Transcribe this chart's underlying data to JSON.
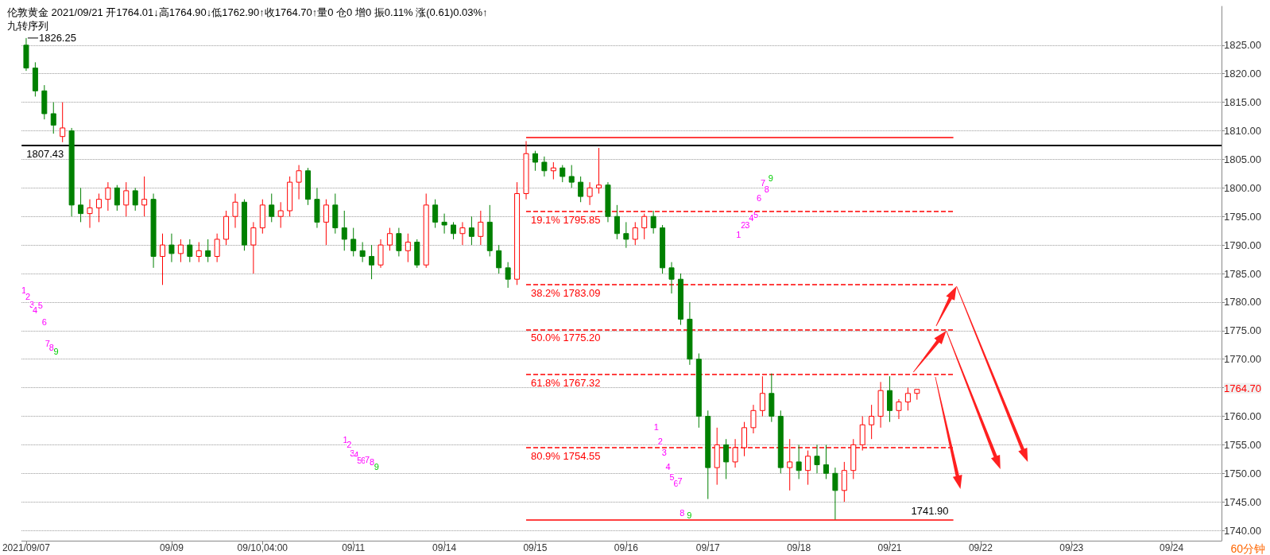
{
  "chart_data": {
    "type": "candlestick",
    "title": "伦敦黄金 2021/09/21 开1764.01↓高1764.90↓低1762.90↑收1764.70↑量0 仓0 增0 振0.11% 涨(0.61)0.03%↑",
    "subtitle": "九转序列",
    "categories": [
      "2021/09/07",
      null,
      null,
      null,
      null,
      null,
      null,
      null,
      null,
      null,
      null,
      null,
      null,
      null,
      null,
      null,
      "09/09",
      null,
      null,
      null,
      null,
      null,
      null,
      null,
      null,
      null,
      "09/10,04:00",
      null,
      null,
      null,
      null,
      null,
      null,
      null,
      null,
      null,
      "09/11",
      null,
      null,
      null,
      null,
      null,
      null,
      null,
      null,
      null,
      "09/14",
      null,
      null,
      null,
      null,
      null,
      null,
      null,
      null,
      null,
      "09/15",
      null,
      null,
      null,
      null,
      null,
      null,
      null,
      null,
      null,
      "09/16",
      null,
      null,
      null,
      null,
      null,
      null,
      null,
      null,
      "09/17",
      null,
      null,
      null,
      null,
      null,
      null,
      null,
      null,
      null,
      "09/18",
      null,
      null,
      null,
      null,
      null,
      null,
      null,
      null,
      null,
      "09/21",
      null,
      null,
      null,
      null,
      null,
      null,
      null,
      null,
      null,
      "09/22",
      null,
      null,
      null,
      null,
      null,
      null,
      null,
      null,
      null,
      "09/23",
      null,
      null,
      null,
      null,
      null,
      null,
      null,
      null,
      null,
      null,
      "09/24",
      null,
      null,
      null,
      null,
      null
    ],
    "colors": [
      "#008000",
      "#008000",
      "#008000",
      "#008000",
      "#ff0000",
      "#008000",
      "#008000",
      "#ff0000",
      "#ff0000",
      "#ff0000",
      "#008000",
      "#ff0000",
      "#008000",
      "#ff0000",
      "#008000",
      "#ff0000",
      "#008000",
      "#ff0000",
      "#008000",
      "#ff0000",
      "#008000",
      "#ff0000",
      "#ff0000",
      "#ff0000",
      "#008000",
      "#ff0000",
      "#ff0000",
      "#008000",
      "#ff0000",
      "#ff0000",
      "#ff0000",
      "#008000",
      "#008000",
      "#ff0000",
      "#008000",
      "#008000",
      "#008000",
      "#008000",
      "#008000",
      "#ff0000",
      "#ff0000",
      "#008000",
      "#ff0000",
      "#008000",
      "#ff0000",
      "#008000",
      "#008000",
      "#008000",
      "#ff0000",
      "#008000",
      "#ff0000",
      "#008000",
      "#008000",
      "#008000",
      "#ff0000",
      "#ff0000",
      "#008000",
      "#008000",
      "#ff0000",
      "#008000",
      "#008000",
      "#008000",
      "#ff0000",
      "#ff0000",
      "#008000",
      "#008000",
      "#008000",
      "#ff0000",
      "#ff0000",
      "#008000",
      "#008000",
      "#008000",
      "#008000",
      "#008000",
      "#008000",
      "#008000",
      "#ff0000",
      "#008000",
      "#ff0000",
      "#ff0000",
      "#ff0000",
      "#ff0000",
      "#008000",
      "#008000",
      "#ff0000",
      "#008000",
      "#ff0000",
      "#008000",
      "#008000",
      "#008000",
      "#ff0000",
      "#ff0000",
      "#ff0000",
      "#ff0000",
      "#ff0000",
      "#008000",
      "#ff0000",
      "#ff0000",
      "#ff0000",
      null,
      null,
      null,
      null,
      null,
      null,
      null,
      null,
      null,
      null,
      null,
      null,
      null,
      null,
      null,
      null,
      null,
      null,
      null,
      null,
      null,
      null,
      null,
      null,
      null,
      null,
      null,
      null,
      null,
      null,
      null,
      null,
      null
    ],
    "ohlc": [
      [
        1825,
        1826.25,
        1820.5,
        1821
      ],
      [
        1821,
        1822,
        1816,
        1817
      ],
      [
        1817,
        1818,
        1812,
        1813
      ],
      [
        1813,
        1815,
        1809.5,
        1811
      ],
      [
        1809,
        1815,
        1808,
        1810.5
      ],
      [
        1810,
        1810.5,
        1795,
        1797
      ],
      [
        1797,
        1800,
        1794,
        1795.5
      ],
      [
        1795.5,
        1798,
        1793,
        1796.5
      ],
      [
        1796.5,
        1799,
        1794,
        1798
      ],
      [
        1798,
        1801,
        1796,
        1800
      ],
      [
        1800,
        1800.5,
        1796,
        1797
      ],
      [
        1797,
        1801,
        1795,
        1799.5
      ],
      [
        1799.5,
        1800,
        1796,
        1797
      ],
      [
        1797,
        1802,
        1795,
        1798
      ],
      [
        1798,
        1799,
        1786,
        1788
      ],
      [
        1788,
        1792,
        1783,
        1790
      ],
      [
        1790,
        1792,
        1787,
        1788.5
      ],
      [
        1788.5,
        1791,
        1787,
        1790
      ],
      [
        1790,
        1791,
        1787,
        1788
      ],
      [
        1788,
        1790.5,
        1787,
        1789
      ],
      [
        1789,
        1791,
        1787,
        1788
      ],
      [
        1788,
        1792,
        1787,
        1791
      ],
      [
        1791,
        1796,
        1790,
        1795
      ],
      [
        1795,
        1799,
        1793,
        1797.5
      ],
      [
        1797.5,
        1798,
        1789,
        1790
      ],
      [
        1790,
        1794,
        1785,
        1793
      ],
      [
        1793,
        1798,
        1792,
        1797
      ],
      [
        1797,
        1799,
        1794,
        1795
      ],
      [
        1795,
        1797.5,
        1793,
        1796
      ],
      [
        1796,
        1802,
        1795,
        1801
      ],
      [
        1801,
        1804,
        1798,
        1803
      ],
      [
        1803,
        1803.5,
        1797,
        1798
      ],
      [
        1798,
        1800,
        1793,
        1794
      ],
      [
        1794,
        1798,
        1790,
        1797
      ],
      [
        1797,
        1799,
        1792,
        1793
      ],
      [
        1793,
        1796,
        1789,
        1791
      ],
      [
        1791,
        1793,
        1788,
        1789
      ],
      [
        1789,
        1790.5,
        1787,
        1788
      ],
      [
        1788,
        1790,
        1784,
        1786.5
      ],
      [
        1786.5,
        1791,
        1786,
        1790
      ],
      [
        1790,
        1793,
        1789,
        1792
      ],
      [
        1792,
        1793,
        1788,
        1789
      ],
      [
        1789,
        1792,
        1787,
        1790.5
      ],
      [
        1790.5,
        1791,
        1786,
        1786.5
      ],
      [
        1786.5,
        1799,
        1786,
        1797
      ],
      [
        1797,
        1798,
        1793,
        1794
      ],
      [
        1794,
        1795.5,
        1792,
        1793.5
      ],
      [
        1793.5,
        1794,
        1791,
        1792
      ],
      [
        1792,
        1794,
        1790,
        1793
      ],
      [
        1793,
        1795,
        1790,
        1791.5
      ],
      [
        1791.5,
        1796,
        1790,
        1794
      ],
      [
        1794,
        1797,
        1788,
        1789
      ],
      [
        1789,
        1790,
        1785,
        1786
      ],
      [
        1786,
        1787,
        1782.5,
        1784
      ],
      [
        1784,
        1801,
        1783,
        1799
      ],
      [
        1799,
        1808.2,
        1798,
        1806
      ],
      [
        1806,
        1806.5,
        1803,
        1804.5
      ],
      [
        1804.5,
        1805.5,
        1802,
        1803
      ],
      [
        1803,
        1804.5,
        1801.5,
        1803.5
      ],
      [
        1803.5,
        1804,
        1801,
        1802
      ],
      [
        1802,
        1804,
        1800,
        1801
      ],
      [
        1801,
        1802,
        1797.5,
        1798.5
      ],
      [
        1798.5,
        1801,
        1797,
        1800
      ],
      [
        1800,
        1807,
        1799,
        1800.5
      ],
      [
        1800.5,
        1801,
        1794,
        1795
      ],
      [
        1795,
        1797,
        1791,
        1792
      ],
      [
        1792,
        1794,
        1789.5,
        1791
      ],
      [
        1791,
        1794,
        1790,
        1793
      ],
      [
        1793,
        1795.5,
        1791,
        1795
      ],
      [
        1795,
        1796,
        1792,
        1793
      ],
      [
        1793,
        1793.5,
        1785,
        1786
      ],
      [
        1786,
        1787,
        1781.5,
        1784
      ],
      [
        1784,
        1785,
        1776,
        1777
      ],
      [
        1777,
        1780,
        1769,
        1770
      ],
      [
        1770,
        1771,
        1758,
        1760
      ],
      [
        1760,
        1761,
        1745.5,
        1751
      ],
      [
        1751,
        1758,
        1748,
        1755
      ],
      [
        1755,
        1756,
        1749,
        1752
      ],
      [
        1752,
        1756,
        1751,
        1754.5
      ],
      [
        1754.5,
        1759,
        1753,
        1758
      ],
      [
        1758,
        1762,
        1757,
        1761
      ],
      [
        1761,
        1767,
        1760,
        1764
      ],
      [
        1764,
        1767.5,
        1759,
        1760
      ],
      [
        1760,
        1761,
        1750,
        1751
      ],
      [
        1751,
        1756,
        1747,
        1752
      ],
      [
        1752,
        1755,
        1749,
        1750.5
      ],
      [
        1750.5,
        1754,
        1748,
        1753
      ],
      [
        1753,
        1755,
        1750,
        1751.5
      ],
      [
        1751.5,
        1755,
        1749,
        1750
      ],
      [
        1750,
        1751,
        1741.9,
        1747
      ],
      [
        1747,
        1752,
        1745,
        1750.5
      ],
      [
        1750.5,
        1756,
        1749,
        1755
      ],
      [
        1755,
        1760,
        1754,
        1758.5
      ],
      [
        1758.5,
        1762,
        1756,
        1760
      ],
      [
        1760,
        1766,
        1758,
        1764.5
      ],
      [
        1764.5,
        1767,
        1759,
        1761
      ],
      [
        1761,
        1763,
        1759.5,
        1762.5
      ],
      [
        1762.5,
        1765,
        1761,
        1764
      ],
      [
        1764.01,
        1764.9,
        1762.9,
        1764.7
      ],
      null,
      null,
      null,
      null,
      null,
      null,
      null,
      null,
      null,
      null,
      null,
      null,
      null,
      null,
      null,
      null,
      null,
      null,
      null,
      null,
      null,
      null,
      null,
      null,
      null,
      null,
      null,
      null,
      null,
      null,
      null,
      null,
      null
    ],
    "ylim": [
      1738.2,
      1831.8
    ],
    "yticks": [
      {
        "value": 1740,
        "label": "1740.00"
      },
      {
        "value": 1745,
        "label": "1745.00"
      },
      {
        "value": 1750,
        "label": "1750.00"
      },
      {
        "value": 1755,
        "label": "1755.00"
      },
      {
        "value": 1760,
        "label": "1760.00"
      },
      {
        "value": 1765,
        "label": null
      },
      {
        "value": 1770,
        "label": "1770.00"
      },
      {
        "value": 1775,
        "label": "1775.00"
      },
      {
        "value": 1780,
        "label": "1780.00"
      },
      {
        "value": 1785,
        "label": "1785.00"
      },
      {
        "value": 1790,
        "label": "1790.00"
      },
      {
        "value": 1795,
        "label": "1795.00"
      },
      {
        "value": 1800,
        "label": "1800.00"
      },
      {
        "value": 1805,
        "label": "1805.00"
      },
      {
        "value": 1810,
        "label": "1810.00"
      },
      {
        "value": 1815,
        "label": "1815.00"
      },
      {
        "value": 1820,
        "label": "1820.00"
      },
      {
        "value": 1825,
        "label": "1825.00"
      }
    ],
    "grid": "y",
    "ref_lines": [
      {
        "axis": "y",
        "value": 1807.43,
        "label": "1807.43",
        "line_style": "solid"
      },
      {
        "axis": "y",
        "value": 1808.9,
        "label": null,
        "color": "#ff0000",
        "line_style": "solid"
      },
      {
        "axis": "y",
        "value": 1795.85,
        "label": "19.1% 1795.85",
        "color": "#ff0000",
        "line_style": "dashed"
      },
      {
        "axis": "y",
        "value": 1783.09,
        "label": "38.2% 1783.09",
        "color": "#ff0000",
        "line_style": "dashed"
      },
      {
        "axis": "y",
        "value": 1775.2,
        "label": "50.0% 1775.20",
        "color": "#ff0000",
        "line_style": "dashed"
      },
      {
        "axis": "y",
        "value": 1767.32,
        "label": "61.8% 1767.32",
        "color": "#ff0000",
        "line_style": "dashed"
      },
      {
        "axis": "y",
        "value": 1754.55,
        "label": "80.9% 1754.55",
        "color": "#ff0000",
        "line_style": "dashed"
      },
      {
        "axis": "y",
        "value": 1741.9,
        "label": "1741.90",
        "color": "#ff0000",
        "line_style": "solid"
      }
    ],
    "annotations": [
      "1826.25",
      "1764.70",
      "60分钟",
      "1",
      "2",
      "3",
      "4",
      "5",
      "6",
      "7",
      "8",
      "9",
      "1",
      "2",
      "3",
      "4",
      "5",
      "6",
      "7",
      "8",
      "9",
      "1",
      "2",
      "3",
      "4",
      "5",
      "6",
      "7",
      "8",
      "9",
      "1",
      "2",
      "3",
      "4",
      "5",
      "6",
      "7",
      "8",
      "9"
    ]
  }
}
